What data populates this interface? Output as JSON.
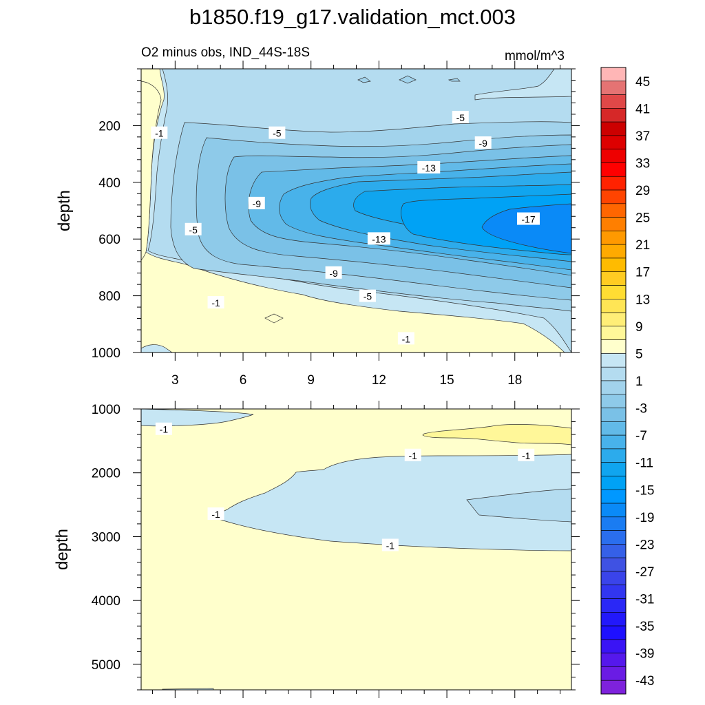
{
  "title": "b1850.f19_g17.validation_mct.003",
  "chart_data": [
    {
      "type": "contour",
      "subtitle_left": "O2 minus obs, IND_44S-18S",
      "subtitle_right": "mmol/m^3",
      "ylabel": "depth",
      "xlabel": "",
      "xlim": [
        1.5,
        20.5
      ],
      "ylim": [
        0,
        1000
      ],
      "y_reversed": true,
      "x_ticks": [
        3,
        6,
        9,
        12,
        15,
        18
      ],
      "y_ticks": [
        200,
        400,
        600,
        800,
        1000
      ],
      "contour_levels": [
        -1,
        -5,
        -9,
        -13,
        -17
      ],
      "contour_labels": [
        {
          "text": "-1",
          "x": 2.3,
          "y": 225
        },
        {
          "text": "-5",
          "x": 15.6,
          "y": 170
        },
        {
          "text": "-5",
          "x": 7.5,
          "y": 225
        },
        {
          "text": "-9",
          "x": 16.6,
          "y": 260
        },
        {
          "text": "-13",
          "x": 14.2,
          "y": 347
        },
        {
          "text": "-9",
          "x": 6.6,
          "y": 473
        },
        {
          "text": "-17",
          "x": 18.6,
          "y": 528
        },
        {
          "text": "-5",
          "x": 3.8,
          "y": 565
        },
        {
          "text": "-13",
          "x": 12.0,
          "y": 598
        },
        {
          "text": "-9",
          "x": 10.0,
          "y": 718
        },
        {
          "text": "-5",
          "x": 11.5,
          "y": 800
        },
        {
          "text": "-1",
          "x": 4.8,
          "y": 823
        },
        {
          "text": "-1",
          "x": 13.2,
          "y": 950
        }
      ]
    },
    {
      "type": "contour",
      "ylabel": "depth",
      "xlabel": "",
      "xlim": [
        1.5,
        20.5
      ],
      "ylim": [
        1000,
        5400
      ],
      "y_reversed": true,
      "y_ticks": [
        1000,
        2000,
        3000,
        4000,
        5000
      ],
      "contour_levels": [
        -1
      ],
      "contour_labels": [
        {
          "text": "-1",
          "x": 2.5,
          "y": 1310
        },
        {
          "text": "-1",
          "x": 13.5,
          "y": 1720
        },
        {
          "text": "-1",
          "x": 18.5,
          "y": 1720
        },
        {
          "text": "-1",
          "x": 4.8,
          "y": 2640
        },
        {
          "text": "-1",
          "x": 12.5,
          "y": 3130
        }
      ]
    }
  ],
  "colorbar": {
    "labels": [
      "45",
      "41",
      "37",
      "33",
      "29",
      "25",
      "21",
      "17",
      "13",
      "9",
      "5",
      "1",
      "-3",
      "-7",
      "-11",
      "-15",
      "-19",
      "-23",
      "-27",
      "-31",
      "-35",
      "-39",
      "-43"
    ],
    "colors": [
      "#FFB6B6",
      "#E57373",
      "#E04848",
      "#D62828",
      "#CC0000",
      "#DD0000",
      "#EE0000",
      "#FF0000",
      "#FF2200",
      "#FF4400",
      "#FF6600",
      "#FF7F00",
      "#FF9900",
      "#FFAA00",
      "#FFBB00",
      "#FFCC22",
      "#FFDD33",
      "#FFE555",
      "#FFEE77",
      "#FFF799",
      "#FFFFCC",
      "#C6E6F4",
      "#B4DCF0",
      "#A2D3EC",
      "#8ECAE9",
      "#7AC1E7",
      "#62BAE8",
      "#48B2EA",
      "#2CABEC",
      "#10A5EF",
      "#00A2F5",
      "#0098FF",
      "#0A8AF7",
      "#1A7CF2",
      "#2A6EEE",
      "#3560E8",
      "#3F52E3",
      "#3A44EA",
      "#3236F0",
      "#2A28F6",
      "#2218FB",
      "#1E10FF",
      "#3A14F5",
      "#5518EC",
      "#6A1CE4",
      "#7E22DC"
    ]
  }
}
